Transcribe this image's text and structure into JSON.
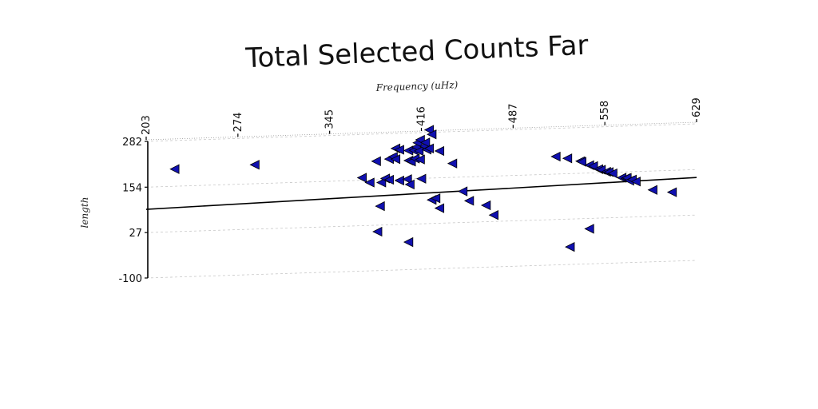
{
  "chart_data": {
    "type": "scatter",
    "title": "Total Selected Counts Far",
    "xlabel": "Frequency (uHz)",
    "ylabel": "length",
    "xlim": [
      203,
      629
    ],
    "ylim": [
      -100,
      282
    ],
    "x_ticks": [
      "203",
      "274",
      "345",
      "416",
      "487",
      "558",
      "629"
    ],
    "y_ticks": [
      "282",
      "154",
      "27",
      "-100"
    ],
    "x_axis_position": "top",
    "grid": "horizontal dashed",
    "marker": "left-pointing triangle",
    "marker_color": "#1010b0",
    "marker_edge_color": "#000000",
    "trend_line": {
      "x": [
        203,
        629
      ],
      "y": [
        92,
        132
      ]
    },
    "points": [
      {
        "x": 225,
        "y": 202
      },
      {
        "x": 287,
        "y": 207
      },
      {
        "x": 370,
        "y": 161
      },
      {
        "x": 376,
        "y": 147
      },
      {
        "x": 381,
        "y": 206
      },
      {
        "x": 385,
        "y": 146
      },
      {
        "x": 388,
        "y": 157
      },
      {
        "x": 391,
        "y": 153
      },
      {
        "x": 391,
        "y": 211
      },
      {
        "x": 394,
        "y": 217
      },
      {
        "x": 396,
        "y": 240
      },
      {
        "x": 396,
        "y": 210
      },
      {
        "x": 399,
        "y": 150
      },
      {
        "x": 399,
        "y": 236
      },
      {
        "x": 405,
        "y": 153
      },
      {
        "x": 406,
        "y": 205
      },
      {
        "x": 406,
        "y": 233
      },
      {
        "x": 407,
        "y": 138
      },
      {
        "x": 408,
        "y": 202
      },
      {
        "x": 410,
        "y": 233
      },
      {
        "x": 411,
        "y": 210
      },
      {
        "x": 412,
        "y": 242
      },
      {
        "x": 413,
        "y": 254
      },
      {
        "x": 414,
        "y": 231
      },
      {
        "x": 415,
        "y": 262
      },
      {
        "x": 415,
        "y": 207
      },
      {
        "x": 416,
        "y": 153
      },
      {
        "x": 418,
        "y": 244
      },
      {
        "x": 419,
        "y": 254
      },
      {
        "x": 420,
        "y": 234
      },
      {
        "x": 422,
        "y": 289
      },
      {
        "x": 422,
        "y": 237
      },
      {
        "x": 424,
        "y": 93
      },
      {
        "x": 424,
        "y": 276
      },
      {
        "x": 427,
        "y": 97
      },
      {
        "x": 430,
        "y": 229
      },
      {
        "x": 430,
        "y": 69
      },
      {
        "x": 440,
        "y": 193
      },
      {
        "x": 448,
        "y": 114
      },
      {
        "x": 453,
        "y": 87
      },
      {
        "x": 466,
        "y": 73
      },
      {
        "x": 472,
        "y": 45
      },
      {
        "x": 384,
        "y": 80
      },
      {
        "x": 382,
        "y": 9
      },
      {
        "x": 406,
        "y": -23
      },
      {
        "x": 520,
        "y": 203
      },
      {
        "x": 529,
        "y": 197
      },
      {
        "x": 539,
        "y": 188
      },
      {
        "x": 540,
        "y": 186
      },
      {
        "x": 546,
        "y": 176
      },
      {
        "x": 549,
        "y": 173
      },
      {
        "x": 553,
        "y": 164
      },
      {
        "x": 555,
        "y": 162
      },
      {
        "x": 559,
        "y": 156
      },
      {
        "x": 561,
        "y": 155
      },
      {
        "x": 564,
        "y": 151
      },
      {
        "x": 571,
        "y": 138
      },
      {
        "x": 574,
        "y": 136
      },
      {
        "x": 575,
        "y": 137
      },
      {
        "x": 577,
        "y": 129
      },
      {
        "x": 579,
        "y": 132
      },
      {
        "x": 582,
        "y": 126
      },
      {
        "x": 595,
        "y": 101
      },
      {
        "x": 610,
        "y": 93
      },
      {
        "x": 531,
        "y": -51
      },
      {
        "x": 546,
        "y": -2
      }
    ]
  }
}
